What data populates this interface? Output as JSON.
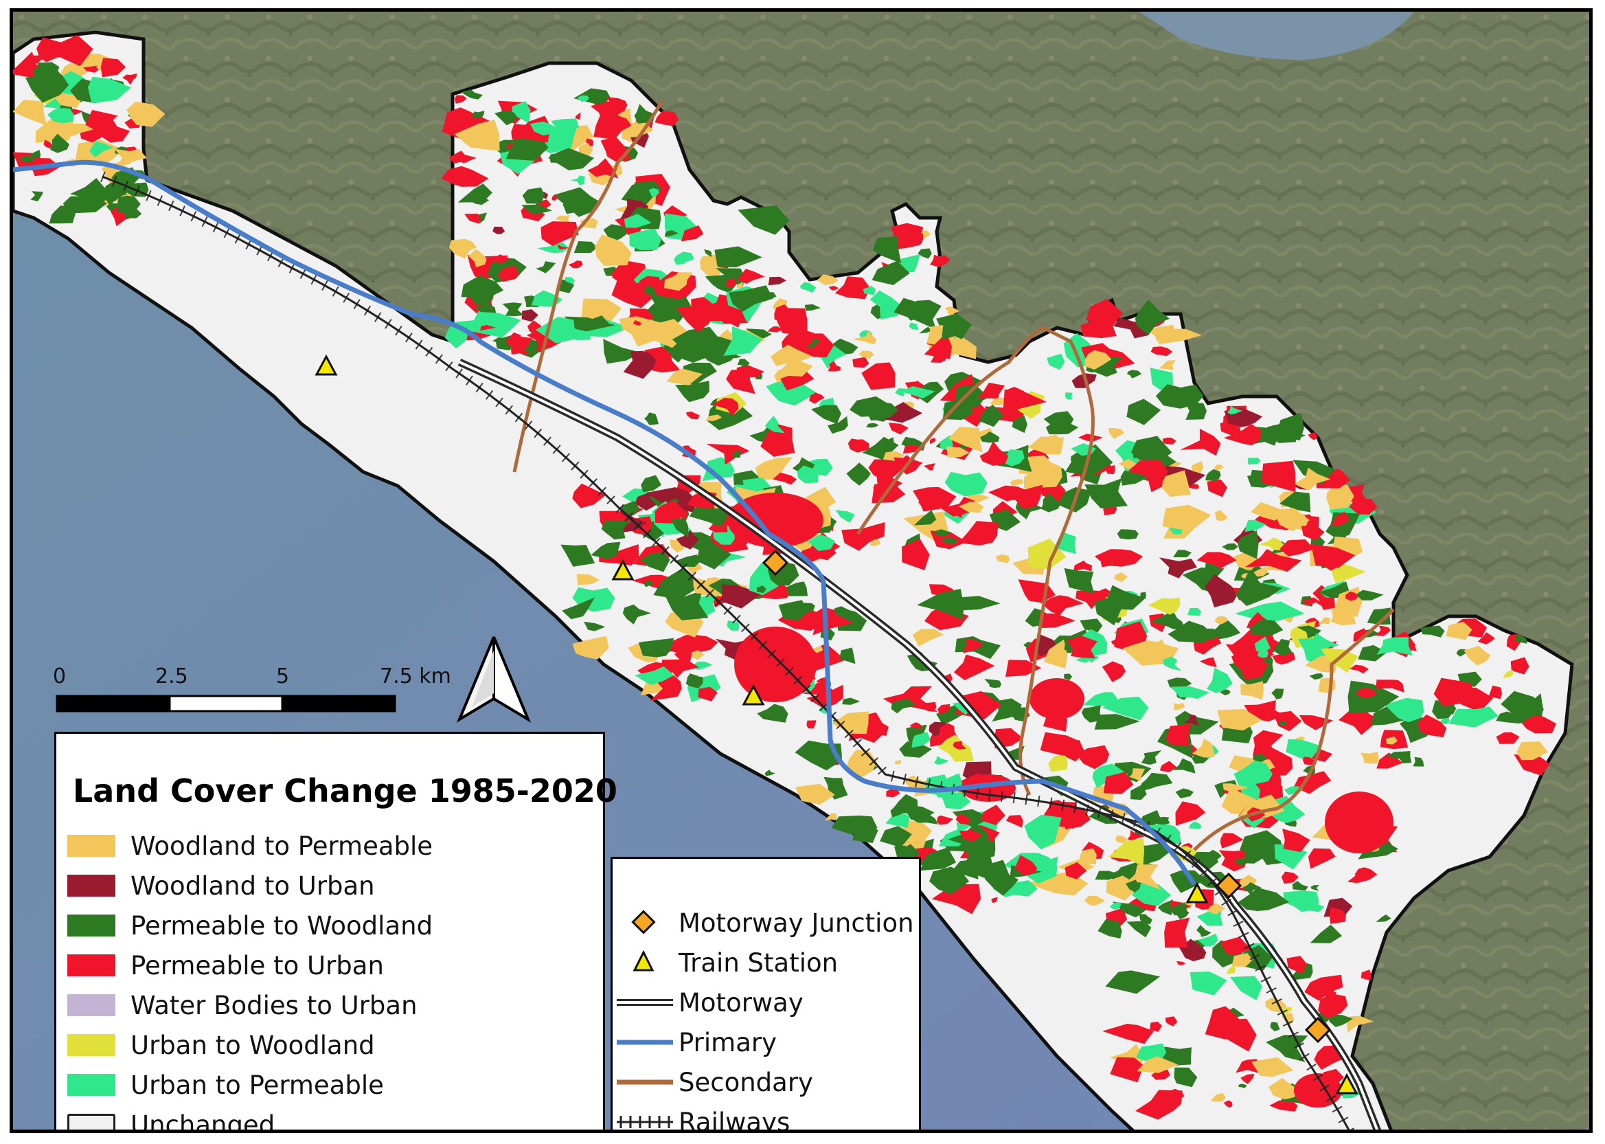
{
  "map": {
    "title": "Land Cover Change 1985-2020",
    "colors": {
      "sea": "#6e86b0",
      "land_background": "#6b7a5a",
      "unchanged_fill": "#f1f1f1",
      "motorway": "#2a2a2a",
      "primary": "#4a7dc9",
      "secondary": "#b0693a",
      "railway": "#222222"
    },
    "north_arrow_icon": "north-arrow-icon"
  },
  "scale_bar": {
    "labels": [
      "0",
      "2.5",
      "5",
      "7.5 km"
    ]
  },
  "legend_main": {
    "items": [
      {
        "label": "Woodland to Permeable",
        "color": "#f2c65b"
      },
      {
        "label": "Woodland to Urban",
        "color": "#9a1a2f"
      },
      {
        "label": "Permeable to Woodland",
        "color": "#2e7a22"
      },
      {
        "label": "Permeable to Urban",
        "color": "#f0152b"
      },
      {
        "label": "Water Bodies to Urban",
        "color": "#c4b4d3"
      },
      {
        "label": "Urban to Woodland",
        "color": "#e1e03a"
      },
      {
        "label": "Urban to Permeable",
        "color": "#2ee88b"
      },
      {
        "label": "Unchanged",
        "color": "#f1f1f1"
      }
    ]
  },
  "legend_lines": {
    "items": [
      {
        "label": "Motorway Junction",
        "symbol": "diamond-icon",
        "color": "#f5a623"
      },
      {
        "label": "Train Station",
        "symbol": "triangle-icon",
        "color": "#f5e600"
      },
      {
        "label": "Motorway",
        "symbol": "double-line-icon",
        "color": "#2a2a2a"
      },
      {
        "label": "Primary",
        "symbol": "line-icon",
        "color": "#4a7dc9"
      },
      {
        "label": "Secondary",
        "symbol": "line-icon",
        "color": "#b0693a"
      },
      {
        "label": "Railways",
        "symbol": "railway-icon",
        "color": "#222222"
      }
    ]
  }
}
